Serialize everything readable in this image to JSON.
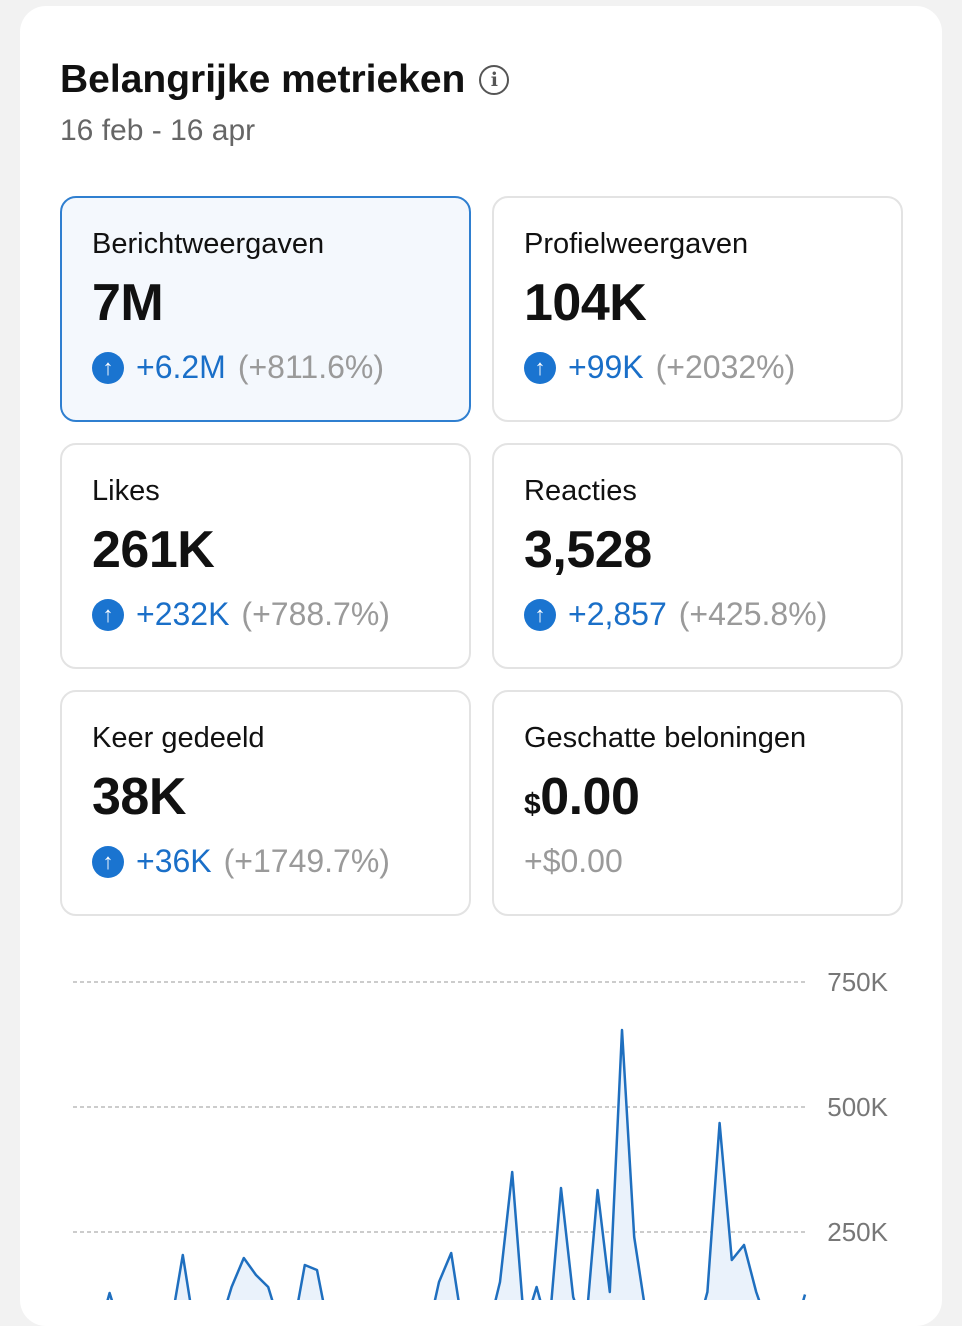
{
  "header": {
    "title": "Belangrijke metrieken",
    "date_range": "16 feb - 16 apr"
  },
  "metrics": [
    {
      "label": "Berichtweergaven",
      "value": "7M",
      "delta": "+6.2M",
      "pct": "(+811.6%)",
      "selected": true
    },
    {
      "label": "Profielweergaven",
      "value": "104K",
      "delta": "+99K",
      "pct": "(+2032%)"
    },
    {
      "label": "Likes",
      "value": "261K",
      "delta": "+232K",
      "pct": "(+788.7%)"
    },
    {
      "label": "Reacties",
      "value": "3,528",
      "delta": "+2,857",
      "pct": "(+425.8%)"
    },
    {
      "label": "Keer gedeeld",
      "value": "38K",
      "delta": "+36K",
      "pct": "(+1749.7%)"
    },
    {
      "label": "Geschatte beloningen",
      "currency": "$",
      "value": "0.00",
      "delta": "+$0.00"
    }
  ],
  "colors": {
    "accent": "#1a6fc8",
    "selected_border": "#2f7fd0"
  },
  "chart_data": {
    "type": "area",
    "title": "",
    "xlabel": "",
    "ylabel": "",
    "y_ticks": [
      {
        "value": 750000,
        "label": "750K"
      },
      {
        "value": 500000,
        "label": "500K"
      },
      {
        "value": 250000,
        "label": "250K"
      }
    ],
    "ylim": [
      0,
      800000
    ],
    "grid": true,
    "series": [
      {
        "name": "Berichtweergaven",
        "values": [
          60000,
          50000,
          40000,
          128000,
          50000,
          40000,
          45000,
          50000,
          60000,
          204000,
          50000,
          40000,
          60000,
          140000,
          198000,
          164000,
          140000,
          60000,
          50000,
          184000,
          174000,
          50000,
          40000,
          35000,
          30000,
          30000,
          30000,
          30000,
          30000,
          40000,
          150000,
          208000,
          50000,
          40000,
          50000,
          150000,
          370000,
          60000,
          140000,
          50000,
          338000,
          120000,
          50000,
          334000,
          130000,
          654000,
          240000,
          80000,
          40000,
          30000,
          40000,
          40000,
          130000,
          468000,
          194000,
          224000,
          130000,
          60000,
          40000,
          40000,
          125000
        ]
      }
    ]
  }
}
